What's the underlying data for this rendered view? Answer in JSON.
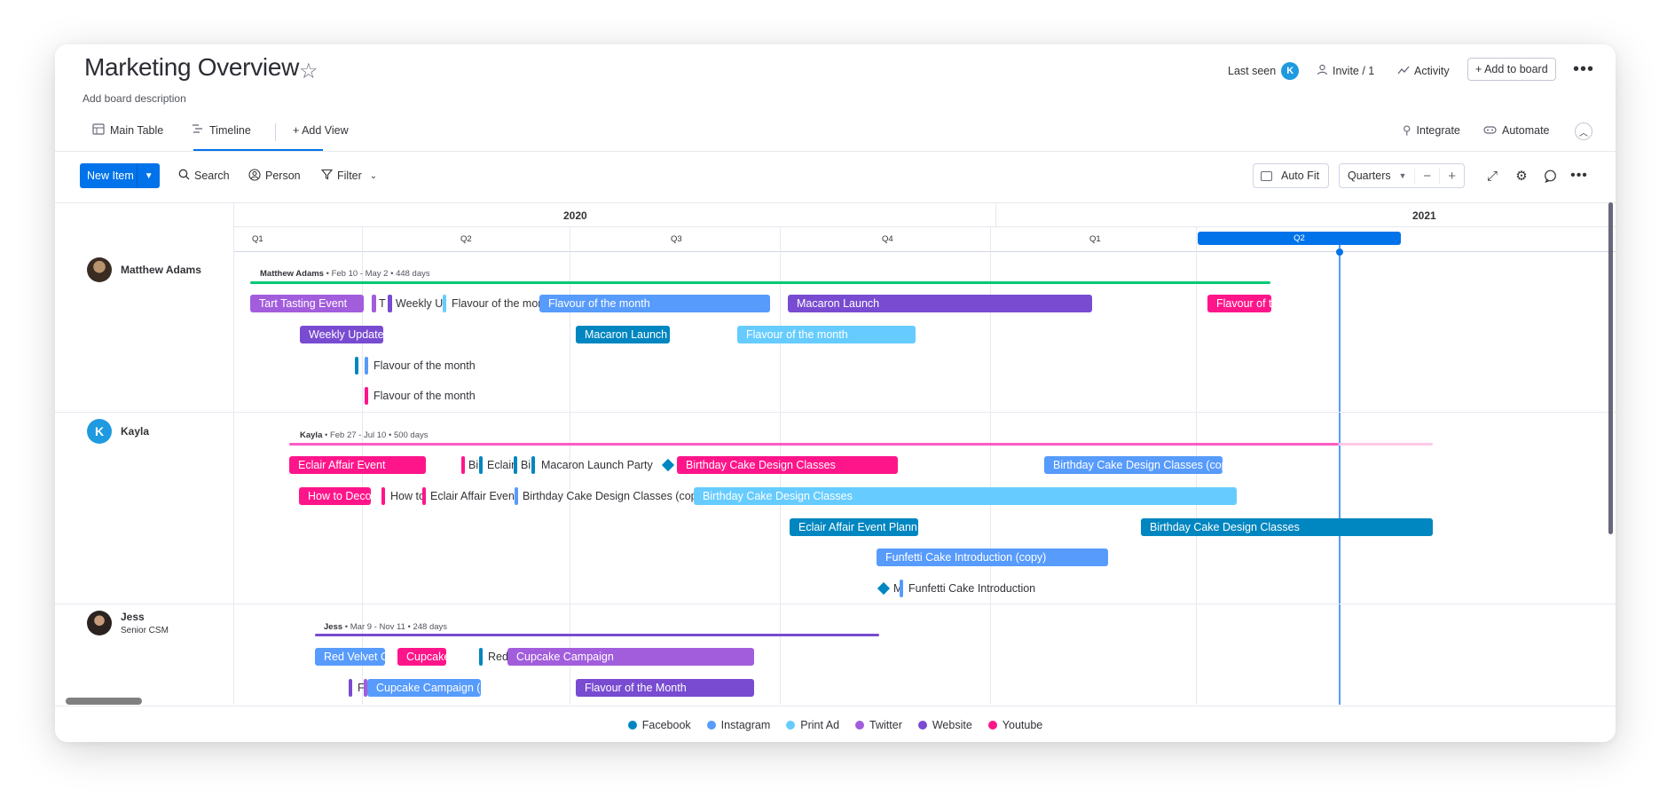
{
  "board": {
    "title": "Marketing Overview",
    "description": "Add board description"
  },
  "header": {
    "last_seen_label": "Last seen",
    "last_seen_initial": "K",
    "invite_label": "Invite / 1",
    "activity_label": "Activity",
    "add_to_board_label": "+ Add to board",
    "more_label": "•••"
  },
  "tabs": {
    "main_table": "Main Table",
    "timeline": "Timeline",
    "add_view": "+  Add View",
    "integrate": "Integrate",
    "automate": "Automate"
  },
  "toolbar": {
    "new_item": "New Item",
    "search": "Search",
    "person": "Person",
    "filter": "Filter",
    "auto_fit": "Auto Fit",
    "zoom": "Quarters"
  },
  "timeline": {
    "years": [
      "2020",
      "2021"
    ],
    "quarters": [
      "Q1",
      "Q2",
      "Q3",
      "Q4",
      "Q1",
      "Q2"
    ],
    "current_quarter": "Q2"
  },
  "groups": [
    {
      "name": "Matthew Adams",
      "summary_name": "Matthew Adams",
      "summary_rest": " • Feb 10 - May 2 • 448 days",
      "items": {
        "tart_tasting": "Tart Tasting Event",
        "t_trunc": "T",
        "weekly_up_trunc": "Weekly Up",
        "flavour_trunc": "Flavour of the mon",
        "flavour_month_1": "Flavour of the month",
        "macaron_launch": "Macaron Launch",
        "flavour_of_t": "Flavour of t",
        "weekly_update": "Weekly Update",
        "macaron_launch_2": "Macaron Launch",
        "flavour_month_2": "Flavour of the month",
        "flavour_month_3": "Flavour of the month",
        "flavour_month_4": "Flavour of the month"
      }
    },
    {
      "name": "Kayla",
      "initial": "K",
      "summary_name": "Kayla",
      "summary_rest": " • Feb 27 - Jul 10 • 500 days",
      "items": {
        "eclair_affair": "Eclair Affair Event",
        "bi_trunc": "Bi",
        "eclair_trunc": "Eclair",
        "bi_trunc_2": "Bi",
        "macaron_party": "Macaron Launch Party",
        "birthday_1": "Birthday Cake Design Classes",
        "birthday_copy_1": "Birthday Cake Design Classes (cop",
        "how_to_deco": "How to Deco",
        "how_to_trunc": "How to",
        "eclair_event_trunc": "Eclair Affair Event",
        "birthday_copy_2": "Birthday Cake Design Classes (copy",
        "birthday_2": "Birthday Cake Design Classes",
        "eclair_plann": "Eclair Affair Event Plann",
        "birthday_3": "Birthday Cake Design Classes",
        "funfetti_copy": "Funfetti Cake Introduction (copy)",
        "m_trunc": "M",
        "funfetti": "Funfetti Cake Introduction"
      }
    },
    {
      "name": "Jess",
      "subtitle": "Senior CSM",
      "summary_name": "Jess",
      "summary_rest": " • Mar 9 - Nov 11 • 248 days",
      "items": {
        "red_velvet": "Red Velvet C",
        "cupcake_trunc": "Cupcake",
        "red_trunc": "Red",
        "cupcake_campaign": "Cupcake Campaign",
        "f_trunc": "F",
        "cupcake_campaign_copy": "Cupcake Campaign (c",
        "flavour_of_the_month": "Flavour of the Month"
      }
    }
  ],
  "legend": [
    "Facebook",
    "Instagram",
    "Print Ad",
    "Twitter",
    "Website",
    "Youtube"
  ],
  "colors": {
    "facebook": "#0086c0",
    "instagram": "#579bfc",
    "print_ad": "#66ccff",
    "twitter": "#a25ddc",
    "website": "#784bd1",
    "youtube": "#ff158a",
    "primary": "#0073ea",
    "matthew_summary": "#00c875",
    "kayla_summary": "#e2445c",
    "jess_summary": "#784bd1"
  }
}
